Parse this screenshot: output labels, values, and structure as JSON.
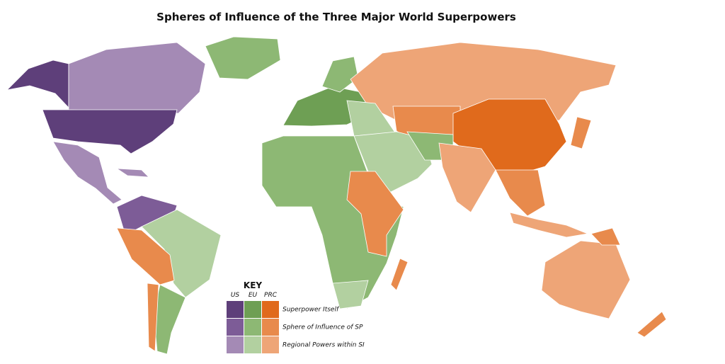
{
  "header": {
    "title": "Spheres of Influence of the Three Major World Superpowers"
  },
  "key": {
    "heading": "KEY",
    "columns": [
      "US",
      "EU",
      "PRC"
    ],
    "rows": [
      "Superpower Itself",
      "Sphere of Influence of SP",
      "Regional Powers within SI"
    ],
    "colors": [
      [
        "#5e3f7a",
        "#6e9f54",
        "#e06a1c"
      ],
      [
        "#7d5c97",
        "#8db874",
        "#e88a4c"
      ],
      [
        "#a48ab5",
        "#b2d0a0",
        "#eea577"
      ]
    ]
  }
}
